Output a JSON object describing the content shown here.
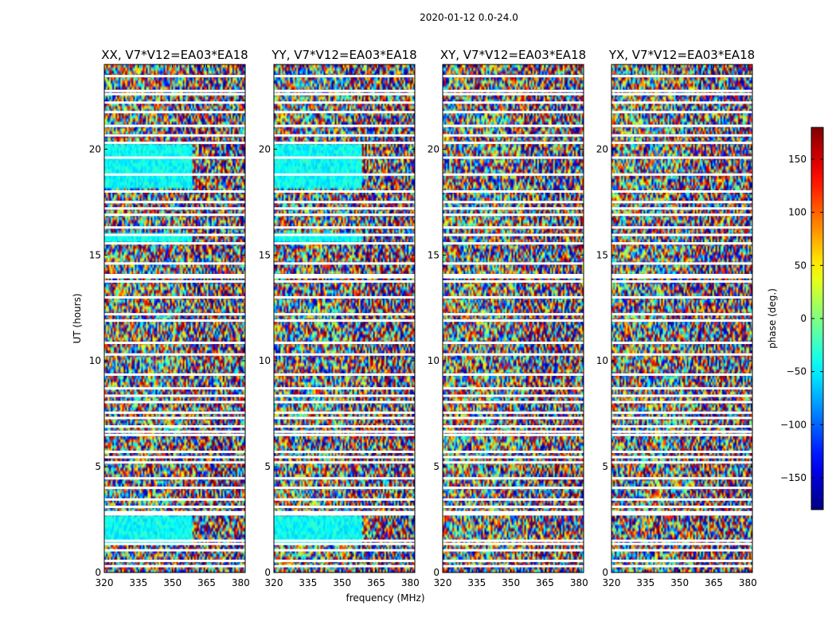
{
  "chart_data": {
    "type": "heatmap",
    "title": "2020-01-12 0.0-24.0",
    "xlabel": "frequency (MHz)",
    "ylabel": "UT (hours)",
    "xlim": [
      320,
      382
    ],
    "ylim": [
      0,
      24
    ],
    "x_ticks": [
      "320",
      "335",
      "350",
      "365",
      "380"
    ],
    "x_tick_values": [
      320,
      335,
      350,
      365,
      380
    ],
    "y_ticks": [
      "0",
      "5",
      "10",
      "15",
      "20"
    ],
    "y_tick_values": [
      0,
      5,
      10,
      15,
      20
    ],
    "panels": [
      {
        "title": "XX, V7*V12=EA03*EA18",
        "calibrated_fraction": 0.62
      },
      {
        "title": "YY, V7*V12=EA03*EA18",
        "calibrated_fraction": 0.62
      },
      {
        "title": "XY, V7*V12=EA03*EA18",
        "calibrated_fraction": 0.0
      },
      {
        "title": "YX, V7*V12=EA03*EA18",
        "calibrated_fraction": 0.0
      }
    ],
    "colorbar": {
      "label": "phase (deg.)",
      "range": [
        -180,
        180
      ],
      "ticks": [
        "150",
        "100",
        "50",
        "0",
        "−50",
        "−100",
        "−150"
      ],
      "tick_values": [
        150,
        100,
        50,
        0,
        -50,
        -100,
        -150
      ],
      "colormap": "jet"
    },
    "flagged_hours": [
      0.3,
      0.55,
      1.05,
      1.35,
      1.5,
      2.75,
      2.85,
      3.1,
      3.45,
      4.0,
      4.45,
      5.2,
      5.45,
      5.7,
      6.5,
      6.65,
      6.9,
      7.3,
      7.55,
      8.05,
      8.35,
      8.7,
      9.35,
      10.3,
      10.85,
      11.9,
      12.2,
      13.0,
      13.75,
      13.95,
      14.05,
      14.6,
      15.55,
      15.95,
      16.3,
      16.9,
      17.2,
      17.5,
      18.0,
      18.8,
      19.6,
      20.3,
      20.65,
      21.1,
      21.75,
      22.2,
      22.6,
      22.75,
      23.45
    ]
  }
}
